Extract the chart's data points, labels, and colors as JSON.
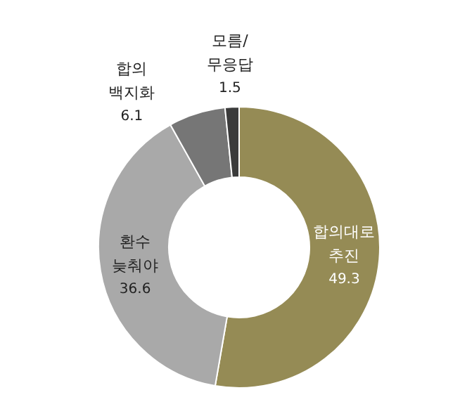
{
  "chart_data": {
    "type": "donut",
    "categories": [
      "합의대로 추진",
      "환수 늦춰야",
      "합의 백지화",
      "모름/무응답"
    ],
    "values": [
      49.3,
      36.6,
      6.1,
      1.5
    ],
    "colors": [
      "#958b55",
      "#a9a9a9",
      "#767676",
      "#3b3b3b"
    ],
    "data_labels": true
  }
}
